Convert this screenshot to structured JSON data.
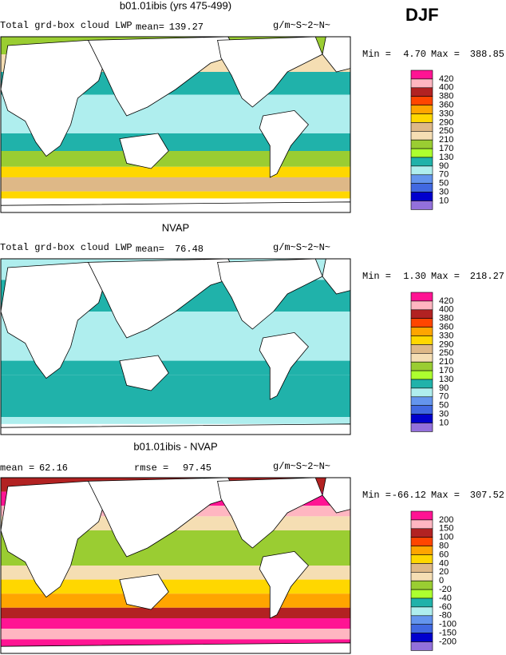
{
  "season": "DJF",
  "panels": [
    {
      "title": "b01.01ibis (yrs 475-499)",
      "variable": "Total grd-box cloud LWP",
      "stat1_label": "mean=",
      "stat1": "139.27",
      "units": "g/m~S~2~N~",
      "min_label": "Min =",
      "min": "4.70",
      "max_label": "Max =",
      "max": "388.85",
      "colorbar": {
        "labels": [
          "420",
          "400",
          "380",
          "360",
          "330",
          "290",
          "250",
          "210",
          "170",
          "130",
          "90",
          "70",
          "50",
          "30",
          "10"
        ],
        "colors": [
          "#ff1493",
          "#ffb6c1",
          "#b22222",
          "#ff4500",
          "#ffa500",
          "#ffd700",
          "#deb887",
          "#f5deb3",
          "#9acd32",
          "#adff2f",
          "#20b2aa",
          "#afeeee",
          "#6495ed",
          "#4169e1",
          "#0000cd",
          "#9370db"
        ]
      }
    },
    {
      "title": "NVAP",
      "variable": "Total grd-box cloud LWP",
      "stat1_label": "mean=",
      "stat1": "76.48",
      "units": "g/m~S~2~N~",
      "min_label": "Min =",
      "min": "1.30",
      "max_label": "Max =",
      "max": "218.27",
      "colorbar": {
        "labels": [
          "420",
          "400",
          "380",
          "360",
          "330",
          "290",
          "250",
          "210",
          "170",
          "130",
          "90",
          "70",
          "50",
          "30",
          "10"
        ],
        "colors": [
          "#ff1493",
          "#ffb6c1",
          "#b22222",
          "#ff4500",
          "#ffa500",
          "#ffd700",
          "#deb887",
          "#f5deb3",
          "#9acd32",
          "#adff2f",
          "#20b2aa",
          "#afeeee",
          "#6495ed",
          "#4169e1",
          "#0000cd",
          "#9370db"
        ]
      }
    },
    {
      "title": "b01.01ibis - NVAP",
      "stat1_label": "mean =",
      "stat1": "62.16",
      "stat2_label": "rmse =",
      "stat2": "97.45",
      "units": "g/m~S~2~N~",
      "min_label": "Min =",
      "min": "-66.12",
      "max_label": "Max =",
      "max": "307.52",
      "colorbar": {
        "labels": [
          "200",
          "150",
          "100",
          "80",
          "60",
          "40",
          "20",
          "0",
          "-20",
          "-40",
          "-60",
          "-80",
          "-100",
          "-150",
          "-200"
        ],
        "colors": [
          "#ff1493",
          "#ffb6c1",
          "#b22222",
          "#ff4500",
          "#ffa500",
          "#ffd700",
          "#deb887",
          "#f5deb3",
          "#9acd32",
          "#adff2f",
          "#20b2aa",
          "#afeeee",
          "#6495ed",
          "#4169e1",
          "#0000cd",
          "#9370db"
        ]
      }
    }
  ]
}
